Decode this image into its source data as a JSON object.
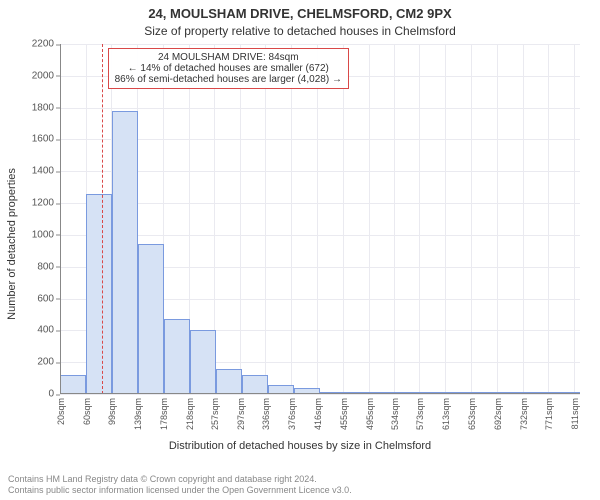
{
  "header": {
    "address_title": "24, MOULSHAM DRIVE, CHELMSFORD, CM2 9PX",
    "subtitle": "Size of property relative to detached houses in Chelmsford"
  },
  "chart": {
    "type": "histogram",
    "ylabel": "Number of detached properties",
    "xlabel": "Distribution of detached houses by size in Chelmsford",
    "background_color": "#ffffff",
    "grid_color": "#eaeaf0",
    "axis_color": "#888888",
    "ylim": [
      0,
      2200
    ],
    "yticks": [
      0,
      200,
      400,
      600,
      800,
      1000,
      1200,
      1400,
      1600,
      1800,
      2000,
      2200
    ],
    "xtick_labels": [
      "20sqm",
      "60sqm",
      "99sqm",
      "139sqm",
      "178sqm",
      "218sqm",
      "257sqm",
      "297sqm",
      "336sqm",
      "376sqm",
      "416sqm",
      "455sqm",
      "495sqm",
      "534sqm",
      "573sqm",
      "613sqm",
      "653sqm",
      "692sqm",
      "732sqm",
      "771sqm",
      "811sqm"
    ],
    "xtick_positions_sqm": [
      20,
      60,
      99,
      139,
      178,
      218,
      257,
      297,
      336,
      376,
      416,
      455,
      495,
      534,
      573,
      613,
      653,
      692,
      732,
      771,
      811
    ],
    "x_range_sqm": [
      20,
      820
    ],
    "bar_fill": "#d6e2f5",
    "bar_border": "#7a9adf",
    "bar_width_sqm": 40,
    "bars": [
      {
        "center_sqm": 40,
        "value": 120
      },
      {
        "center_sqm": 80,
        "value": 1260
      },
      {
        "center_sqm": 120,
        "value": 1780
      },
      {
        "center_sqm": 160,
        "value": 940
      },
      {
        "center_sqm": 200,
        "value": 470
      },
      {
        "center_sqm": 240,
        "value": 400
      },
      {
        "center_sqm": 280,
        "value": 155
      },
      {
        "center_sqm": 320,
        "value": 120
      },
      {
        "center_sqm": 360,
        "value": 55
      },
      {
        "center_sqm": 400,
        "value": 35
      },
      {
        "center_sqm": 440,
        "value": 10
      },
      {
        "center_sqm": 480,
        "value": 8
      },
      {
        "center_sqm": 520,
        "value": 6
      },
      {
        "center_sqm": 560,
        "value": 4
      },
      {
        "center_sqm": 600,
        "value": 3
      },
      {
        "center_sqm": 640,
        "value": 2
      },
      {
        "center_sqm": 680,
        "value": 2
      },
      {
        "center_sqm": 720,
        "value": 1
      },
      {
        "center_sqm": 760,
        "value": 1
      },
      {
        "center_sqm": 800,
        "value": 1
      }
    ],
    "marker": {
      "position_sqm": 84,
      "color": "#d94848"
    },
    "annotation": {
      "border_color": "#d94848",
      "lines": [
        "24 MOULSHAM DRIVE: 84sqm",
        "← 14% of detached houses are smaller (672)",
        "86% of semi-detached houses are larger (4,028) →"
      ]
    },
    "label_fontsize": 11,
    "tick_fontsize": 10,
    "xtick_fontsize": 9
  },
  "footer": {
    "line1": "Contains HM Land Registry data © Crown copyright and database right 2024.",
    "line2": "Contains public sector information licensed under the Open Government Licence v3.0."
  }
}
